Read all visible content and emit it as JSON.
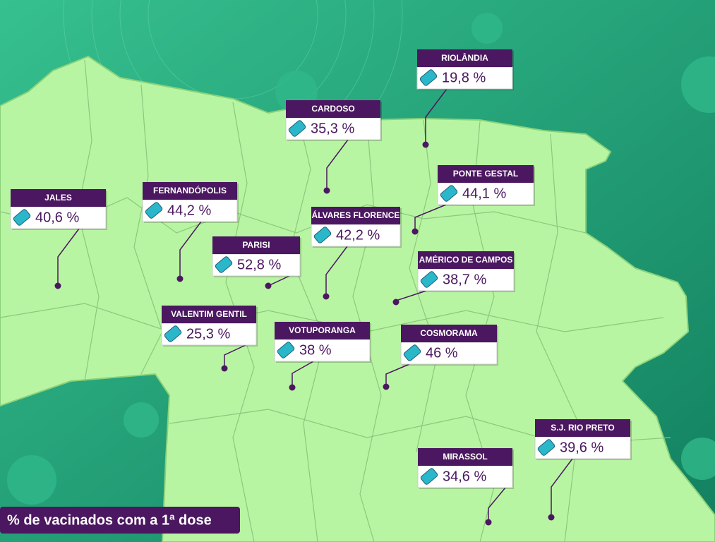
{
  "legend_title": "% de vacinados com a 1ª dose",
  "cities": [
    {
      "name": "RIOLÂNDIA",
      "label": "19,8 %"
    },
    {
      "name": "CARDOSO",
      "label": "35,3 %"
    },
    {
      "name": "JALES",
      "label": "40,6 %"
    },
    {
      "name": "FERNANDÓPOLIS",
      "label": "44,2 %"
    },
    {
      "name": "ÁLVARES FLORENCE",
      "label": "42,2 %"
    },
    {
      "name": "PONTE GESTAL",
      "label": "44,1 %"
    },
    {
      "name": "PARISI",
      "label": "52,8 %"
    },
    {
      "name": "AMÉRICO DE CAMPOS",
      "label": "38,7 %"
    },
    {
      "name": "VALENTIM GENTIL",
      "label": "25,3 %"
    },
    {
      "name": "VOTUPORANGA",
      "label": "38 %"
    },
    {
      "name": "COSMORAMA",
      "label": "46 %"
    },
    {
      "name": "S.J. RIO PRETO",
      "label": "39,6 %"
    },
    {
      "name": "MIRASSOL",
      "label": "34,6 %"
    }
  ]
}
